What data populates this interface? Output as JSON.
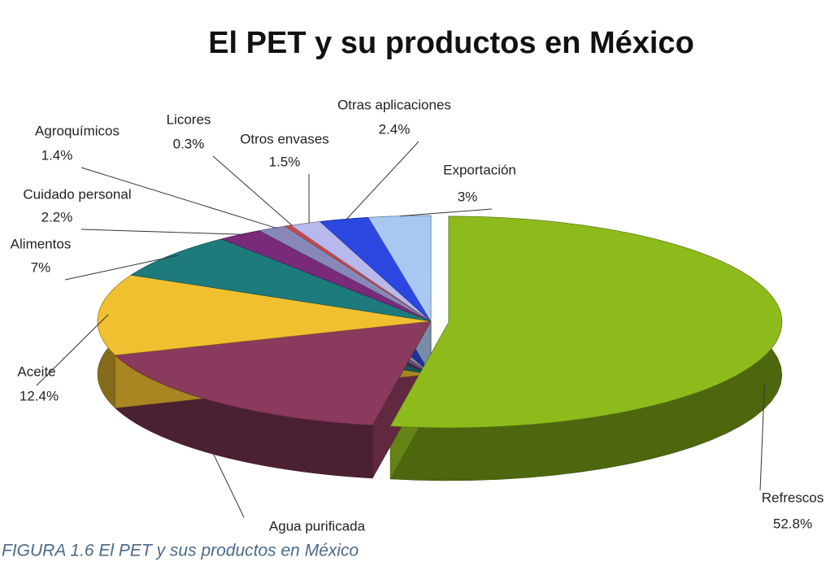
{
  "chart_data": {
    "type": "pie",
    "title": "El PET y su productos en México",
    "caption": "FIGURA 1.6 El PET y sus productos en México",
    "categories": [
      "Refrescos",
      "Agua purificada",
      "Aceite",
      "Alimentos",
      "Cuidado personal",
      "Agroquímicos",
      "Licores",
      "Otros envases",
      "Otras aplicaciones",
      "Exportación"
    ],
    "values": [
      52.8,
      17,
      12.4,
      7,
      2.2,
      1.4,
      0.3,
      1.5,
      2.4,
      3
    ],
    "value_labels": [
      "52.8%",
      null,
      "12.4%",
      "7%",
      "2.2%",
      "1.4%",
      "0.3%",
      "1.5%",
      "2.4%",
      "3%"
    ],
    "colors": [
      "#8dbb1c",
      "#8a3a5c",
      "#f0c030",
      "#1e7b7b",
      "#7a2a7a",
      "#8888b8",
      "#d04848",
      "#b8b8ec",
      "#2a48e0",
      "#a8c8f2"
    ]
  }
}
